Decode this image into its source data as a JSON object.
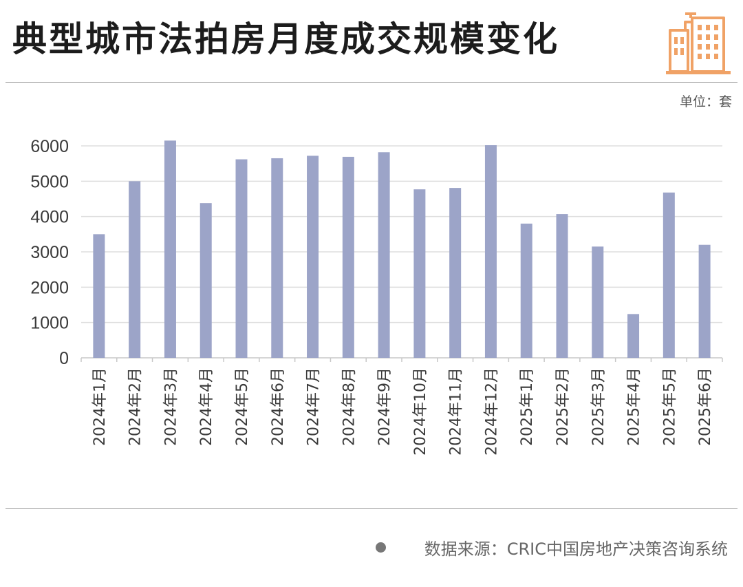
{
  "header": {
    "title": "典型城市法拍房月度成交规模变化",
    "unit": "单位：套",
    "logo_icon": "city-buildings-icon",
    "logo_color": "#f0a266"
  },
  "footer": {
    "source": "数据来源：CRIC中国房地产决策咨询系统"
  },
  "colors": {
    "bar": "#9ca4c8",
    "grid": "#dedede",
    "axis_text": "#3a3a3a",
    "title": "#1c1c1c"
  },
  "chart_data": {
    "type": "bar",
    "title": "典型城市法拍房月度成交规模变化",
    "xlabel": "",
    "ylabel": "",
    "unit": "单位：套",
    "ylim": [
      0,
      6000
    ],
    "yticks": [
      0,
      1000,
      2000,
      3000,
      4000,
      5000,
      6000
    ],
    "grid": true,
    "legend": "none",
    "categories": [
      "2024年1月",
      "2024年2月",
      "2024年3月",
      "2024年4月",
      "2024年5月",
      "2024年6月",
      "2024年7月",
      "2024年8月",
      "2024年9月",
      "2024年10月",
      "2024年11月",
      "2024年12月",
      "2025年1月",
      "2025年2月",
      "2025年3月",
      "2025年4月",
      "2025年5月",
      "2025年6月"
    ],
    "values": [
      3500,
      5000,
      6150,
      4380,
      5620,
      5650,
      5720,
      5690,
      5820,
      4770,
      4810,
      6020,
      3800,
      4070,
      3150,
      1240,
      4680,
      3200
    ]
  }
}
